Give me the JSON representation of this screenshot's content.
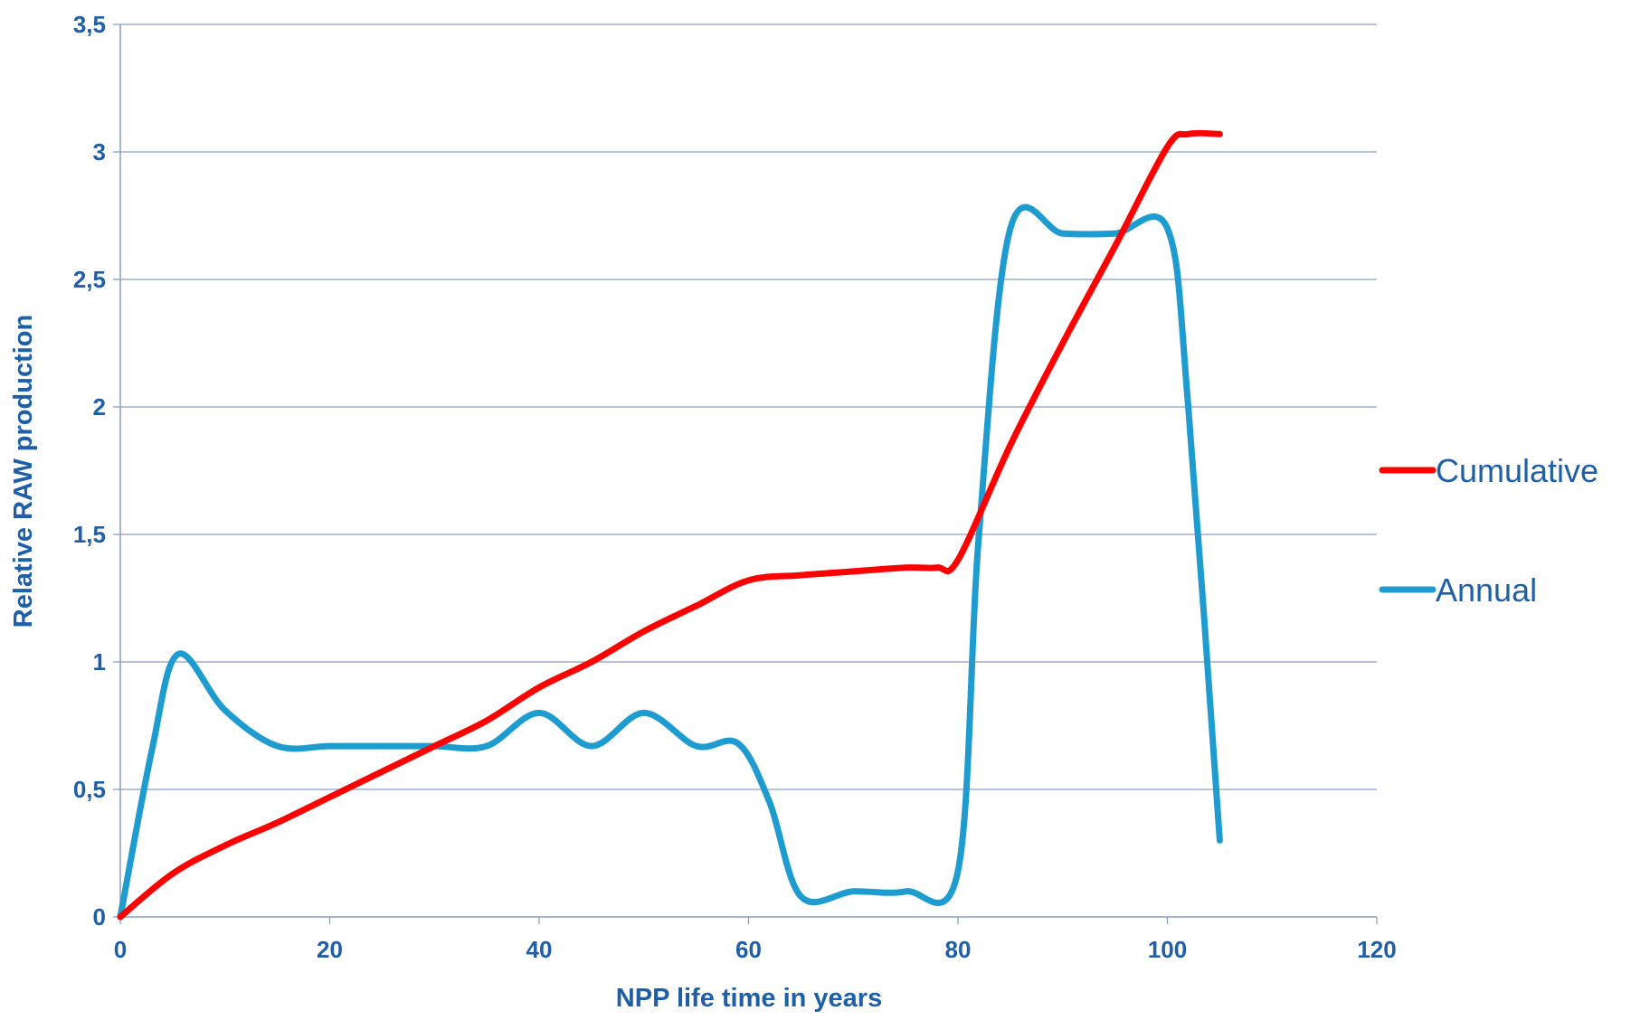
{
  "chart_data": {
    "type": "line",
    "title": "",
    "xlabel": "NPP life time in years",
    "ylabel": "Relative RAW production",
    "xlim": [
      0,
      120
    ],
    "ylim": [
      0,
      3.5
    ],
    "x_ticks": [
      "0",
      "20",
      "40",
      "60",
      "80",
      "100",
      "120"
    ],
    "y_ticks": [
      "0",
      "0,5",
      "1",
      "1,5",
      "2",
      "2,5",
      "3",
      "3,5"
    ],
    "grid": "horizontal",
    "legend_position": "right",
    "series": [
      {
        "name": "Cumulative",
        "color": "#ff0000",
        "points": [
          [
            0,
            0
          ],
          [
            5,
            0.17
          ],
          [
            10,
            0.28
          ],
          [
            15,
            0.37
          ],
          [
            20,
            0.47
          ],
          [
            25,
            0.57
          ],
          [
            30,
            0.67
          ],
          [
            35,
            0.77
          ],
          [
            40,
            0.9
          ],
          [
            45,
            1.0
          ],
          [
            50,
            1.12
          ],
          [
            55,
            1.22
          ],
          [
            60,
            1.32
          ],
          [
            65,
            1.34
          ],
          [
            70,
            1.355
          ],
          [
            75,
            1.37
          ],
          [
            78,
            1.37
          ],
          [
            80,
            1.4
          ],
          [
            85,
            1.85
          ],
          [
            90,
            2.25
          ],
          [
            95,
            2.63
          ],
          [
            100,
            3.02
          ],
          [
            102,
            3.07
          ],
          [
            105,
            3.07
          ]
        ]
      },
      {
        "name": "Annual",
        "color": "#1f9ccf",
        "points": [
          [
            0,
            0
          ],
          [
            3,
            0.65
          ],
          [
            5.5,
            1.03
          ],
          [
            10,
            0.81
          ],
          [
            15,
            0.67
          ],
          [
            20,
            0.67
          ],
          [
            25,
            0.67
          ],
          [
            30,
            0.67
          ],
          [
            35,
            0.67
          ],
          [
            40,
            0.8
          ],
          [
            45,
            0.67
          ],
          [
            50,
            0.8
          ],
          [
            55,
            0.67
          ],
          [
            59,
            0.68
          ],
          [
            62,
            0.45
          ],
          [
            65,
            0.08
          ],
          [
            70,
            0.1
          ],
          [
            75,
            0.1
          ],
          [
            80,
            0.18
          ],
          [
            82,
            1.5
          ],
          [
            85,
            2.7
          ],
          [
            90,
            2.68
          ],
          [
            95,
            2.68
          ],
          [
            100,
            2.7
          ],
          [
            102,
            2.0
          ],
          [
            105,
            0.3
          ]
        ]
      }
    ]
  }
}
